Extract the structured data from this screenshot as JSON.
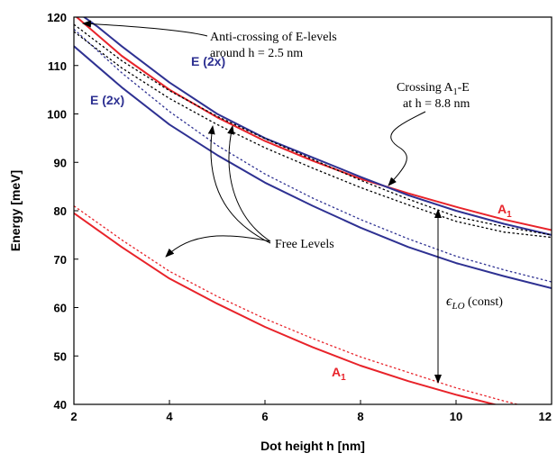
{
  "chart_data": {
    "type": "line",
    "xlabel": "Dot height h [nm]",
    "ylabel": "Energy [meV]",
    "xlim": [
      2,
      12
    ],
    "ylim": [
      40,
      120
    ],
    "xticks": [
      "2",
      "4",
      "6",
      "8",
      "10",
      "12"
    ],
    "yticks": [
      "40",
      "50",
      "60",
      "70",
      "80",
      "90",
      "100",
      "110",
      "120"
    ],
    "grid": false,
    "colors": {
      "red": "#e8232a",
      "blue": "#2e3192",
      "black": "#000000"
    },
    "series": [
      {
        "key": "a1-upper",
        "color": "#e8232a",
        "style": "solid",
        "x": [
          2,
          3,
          4,
          5,
          6,
          7,
          8,
          9,
          10,
          11,
          12
        ],
        "y": [
          120.5,
          112.0,
          105.0,
          99.3,
          94.4,
          90.3,
          86.6,
          83.6,
          80.8,
          78.2,
          76.0
        ]
      },
      {
        "key": "e-upper",
        "color": "#2e3192",
        "style": "solid",
        "x": [
          2,
          2.5,
          3,
          4,
          5,
          6,
          7,
          8,
          9,
          10,
          11,
          12
        ],
        "y": [
          121.5,
          118.0,
          114.0,
          106.5,
          100.0,
          95.0,
          91.0,
          87.0,
          83.2,
          80.0,
          77.3,
          75.0
        ]
      },
      {
        "key": "e-lower",
        "color": "#2e3192",
        "style": "solid",
        "x": [
          2,
          3,
          4,
          5,
          6,
          7,
          8,
          9,
          10,
          11,
          12
        ],
        "y": [
          114.0,
          105.5,
          97.8,
          91.5,
          85.8,
          81.0,
          76.5,
          72.5,
          69.2,
          66.5,
          64.0
        ]
      },
      {
        "key": "a1-lower",
        "color": "#e8232a",
        "style": "solid",
        "x": [
          2,
          3,
          4,
          5,
          6,
          7,
          8,
          9,
          10,
          11,
          12
        ],
        "y": [
          79.5,
          72.5,
          66.0,
          60.8,
          56.0,
          51.8,
          48.0,
          44.8,
          42.0,
          39.5,
          37.5
        ]
      },
      {
        "key": "a1-lower-free",
        "color": "#e8232a",
        "style": "dotted",
        "x": [
          2,
          3,
          4,
          5,
          6,
          7,
          8,
          9,
          10,
          11,
          12
        ],
        "y": [
          81.0,
          74.0,
          67.5,
          62.3,
          57.7,
          53.6,
          49.8,
          46.6,
          43.4,
          40.7,
          38.2
        ]
      },
      {
        "key": "e-free",
        "color": "#2e3192",
        "style": "dotted",
        "x": [
          2,
          3,
          4,
          5,
          6,
          7,
          8,
          9,
          10,
          11,
          12
        ],
        "y": [
          117.5,
          108.5,
          100.5,
          93.5,
          87.6,
          82.6,
          78.2,
          74.2,
          70.6,
          67.8,
          65.3
        ]
      },
      {
        "key": "black-free-1",
        "color": "#000000",
        "style": "dotted",
        "x": [
          2,
          3,
          4,
          5,
          6,
          7,
          8,
          9,
          10,
          11,
          12
        ],
        "y": [
          118.5,
          111.0,
          104.8,
          99.5,
          94.9,
          90.6,
          86.3,
          82.4,
          78.8,
          76.7,
          75.0
        ]
      },
      {
        "key": "black-free-2",
        "color": "#000000",
        "style": "dotted",
        "x": [
          2,
          3,
          4,
          5,
          6,
          7,
          8,
          9,
          10,
          11,
          12
        ],
        "y": [
          117.0,
          109.5,
          103.2,
          97.8,
          93.0,
          88.8,
          84.8,
          81.2,
          77.8,
          75.6,
          74.5
        ]
      }
    ],
    "labels": {
      "e_upper": "E (2x)",
      "e_lower": "E (2x)",
      "a1_upper_main": "A",
      "a1_upper_sub": "1",
      "a1_lower_main": "A",
      "a1_lower_sub": "1"
    },
    "annotations": {
      "anticrossing_line1": "Anti-crossing of E-levels",
      "anticrossing_line2": "around h = 2.5 nm",
      "crossing_line1_a": "Crossing A",
      "crossing_line1_sub": "1",
      "crossing_line1_b": "-E",
      "crossing_line2": "at h = 8.8 nm",
      "free_levels": "Free Levels",
      "elo_symbol": "ϵ",
      "elo_sub": "LO",
      "elo_const": " (const)"
    }
  }
}
